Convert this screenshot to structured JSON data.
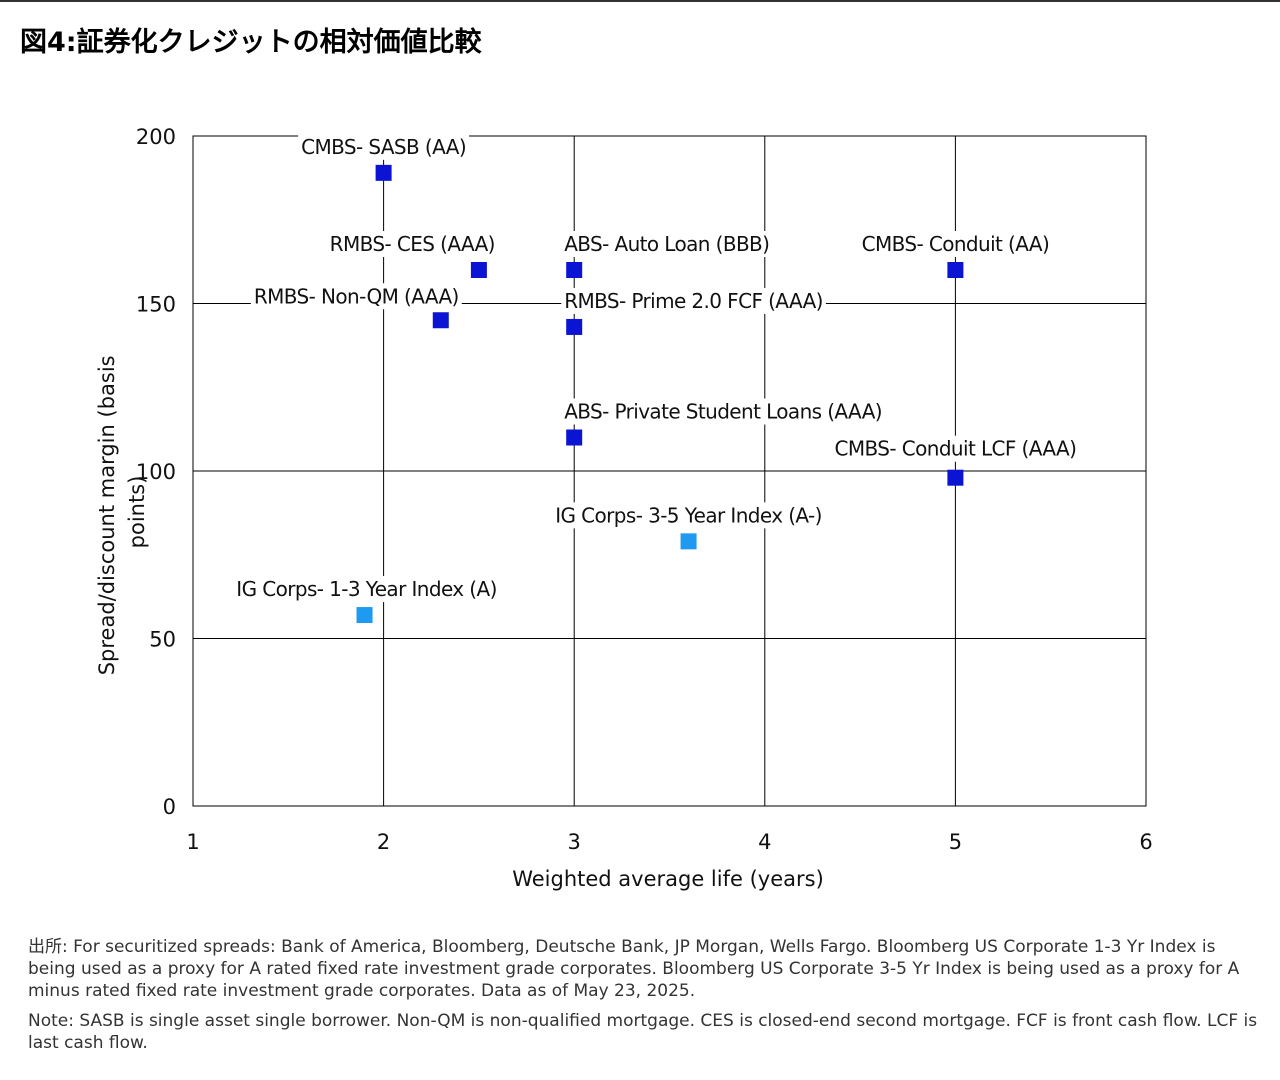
{
  "page": {
    "title": "図4:証券化クレジットの相対価値比較",
    "source_note": "出所: For securitized spreads: Bank of America, Bloomberg, Deutsche Bank, JP Morgan, Wells Fargo. Bloomberg US Corporate 1-3 Yr Index is being used as a proxy for A rated fixed rate investment grade corporates. Bloomberg US Corporate 3-5 Yr Index is being used as a proxy for A minus rated fixed rate investment grade corporates. Data as of May 23, 2025.",
    "abbrev_note": "Note: SASB is single asset single borrower. Non-QM is non-qualified mortgage. CES is closed-end second mortgage. FCF is front cash flow. LCF is last cash flow."
  },
  "chart_data": {
    "type": "scatter",
    "title": "",
    "xlabel": "Weighted average life (years)",
    "ylabel_lines": [
      "Spread/discount margin (basis",
      "points)"
    ],
    "xlim": [
      1,
      6
    ],
    "ylim": [
      0,
      200
    ],
    "xticks": [
      "1",
      "2",
      "3",
      "4",
      "5",
      "6"
    ],
    "yticks": [
      "0",
      "50",
      "100",
      "150",
      "200"
    ],
    "grid": true,
    "colors": {
      "securitized": "#0a14d2",
      "ig_corporates": "#1e9bf0",
      "grid": "#000000"
    },
    "points": [
      {
        "label": "CMBS- SASB (AA)",
        "x": 2.0,
        "y": 189,
        "group": "securitized"
      },
      {
        "label": "RMBS- CES (AAA)",
        "x": 2.5,
        "y": 160,
        "group": "securitized"
      },
      {
        "label": "ABS- Auto Loan (BBB)",
        "x": 3.0,
        "y": 160,
        "group": "securitized"
      },
      {
        "label": "CMBS- Conduit (AA)",
        "x": 5.0,
        "y": 160,
        "group": "securitized"
      },
      {
        "label": "RMBS- Non-QM (AAA)",
        "x": 2.3,
        "y": 145,
        "group": "securitized"
      },
      {
        "label": "RMBS- Prime 2.0 FCF (AAA)",
        "x": 3.0,
        "y": 143,
        "group": "securitized"
      },
      {
        "label": "ABS- Private Student Loans (AAA)",
        "x": 3.0,
        "y": 110,
        "group": "securitized"
      },
      {
        "label": "CMBS- Conduit LCF (AAA)",
        "x": 5.0,
        "y": 98,
        "group": "securitized"
      },
      {
        "label": "IG Corps- 3-5 Year Index (A-)",
        "x": 3.6,
        "y": 79,
        "group": "ig_corporates"
      },
      {
        "label": "IG Corps- 1-3 Year Index (A)",
        "x": 1.9,
        "y": 57,
        "group": "ig_corporates"
      }
    ]
  }
}
